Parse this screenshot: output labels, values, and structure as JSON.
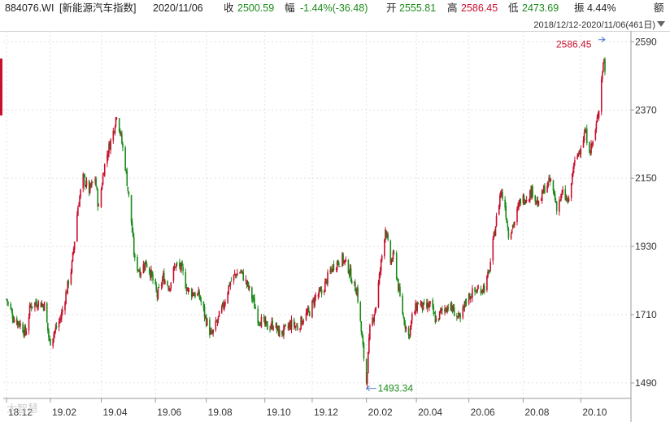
{
  "header": {
    "code": "884076.WI",
    "name": "[新能源汽车指数]",
    "date": "2020/11/06",
    "close_label": "收",
    "close_value": "2500.59",
    "change_label": "幅",
    "change_value": "-1.44%(-36.48)",
    "open_label": "开",
    "open_value": "2555.81",
    "high_label": "高",
    "high_value": "2586.45",
    "low_label": "低",
    "low_value": "2473.69",
    "amp_label": "振",
    "amp_value": "4.44%",
    "amount_label": "额"
  },
  "range": {
    "text": "2018/12/12-2020/11/06(461日)"
  },
  "watermark": "大智慧",
  "colors": {
    "up": "#c8102e",
    "down": "#1a8a1a",
    "grid": "#e2e2e2",
    "axis": "#9a9a9a",
    "annotation_line": "#4a78c8"
  },
  "chart_data": {
    "type": "candlestick",
    "title": "",
    "xlabel": "",
    "ylabel": "",
    "ylim": [
      1440,
      2625
    ],
    "x_range": [
      "2018-12-12",
      "2020-11-06"
    ],
    "y_ticks": [
      1490,
      1710,
      1930,
      2150,
      2370,
      2590
    ],
    "x_ticks": [
      {
        "label": "18.12",
        "date": "2018-12-12"
      },
      {
        "label": "19.02",
        "date": "2019-02-01"
      },
      {
        "label": "19.04",
        "date": "2019-04-01"
      },
      {
        "label": "19.06",
        "date": "2019-06-03"
      },
      {
        "label": "19.08",
        "date": "2019-08-01"
      },
      {
        "label": "19.10",
        "date": "2019-10-08"
      },
      {
        "label": "19.12",
        "date": "2019-12-02"
      },
      {
        "label": "20.02",
        "date": "2020-02-03"
      },
      {
        "label": "20.04",
        "date": "2020-04-01"
      },
      {
        "label": "20.06",
        "date": "2020-06-01"
      },
      {
        "label": "20.08",
        "date": "2020-08-03"
      },
      {
        "label": "20.10",
        "date": "2020-10-09"
      }
    ],
    "path": [
      [
        "2018-12-12",
        1760
      ],
      [
        "2018-12-20",
        1700
      ],
      [
        "2018-12-28",
        1680
      ],
      [
        "2019-01-03",
        1650
      ],
      [
        "2019-01-09",
        1740
      ],
      [
        "2019-01-17",
        1750
      ],
      [
        "2019-01-25",
        1740
      ],
      [
        "2019-01-31",
        1620
      ],
      [
        "2019-02-13",
        1700
      ],
      [
        "2019-02-20",
        1790
      ],
      [
        "2019-02-26",
        1870
      ],
      [
        "2019-03-05",
        2060
      ],
      [
        "2019-03-11",
        2150
      ],
      [
        "2019-03-18",
        2110
      ],
      [
        "2019-03-25",
        2150
      ],
      [
        "2019-03-29",
        2050
      ],
      [
        "2019-04-04",
        2180
      ],
      [
        "2019-04-09",
        2240
      ],
      [
        "2019-04-15",
        2300
      ],
      [
        "2019-04-19",
        2360
      ],
      [
        "2019-04-23",
        2300
      ],
      [
        "2019-04-29",
        2190
      ],
      [
        "2019-05-06",
        2010
      ],
      [
        "2019-05-10",
        1880
      ],
      [
        "2019-05-16",
        1850
      ],
      [
        "2019-05-23",
        1880
      ],
      [
        "2019-05-29",
        1840
      ],
      [
        "2019-06-05",
        1770
      ],
      [
        "2019-06-12",
        1830
      ],
      [
        "2019-06-19",
        1800
      ],
      [
        "2019-06-26",
        1870
      ],
      [
        "2019-07-03",
        1860
      ],
      [
        "2019-07-10",
        1790
      ],
      [
        "2019-07-17",
        1780
      ],
      [
        "2019-07-24",
        1770
      ],
      [
        "2019-07-31",
        1700
      ],
      [
        "2019-08-07",
        1640
      ],
      [
        "2019-08-14",
        1690
      ],
      [
        "2019-08-21",
        1740
      ],
      [
        "2019-08-28",
        1810
      ],
      [
        "2019-09-04",
        1840
      ],
      [
        "2019-09-10",
        1850
      ],
      [
        "2019-09-17",
        1810
      ],
      [
        "2019-09-24",
        1760
      ],
      [
        "2019-09-30",
        1700
      ],
      [
        "2019-10-11",
        1670
      ],
      [
        "2019-10-18",
        1680
      ],
      [
        "2019-10-25",
        1650
      ],
      [
        "2019-11-01",
        1660
      ],
      [
        "2019-11-08",
        1680
      ],
      [
        "2019-11-15",
        1670
      ],
      [
        "2019-11-22",
        1700
      ],
      [
        "2019-11-29",
        1720
      ],
      [
        "2019-12-06",
        1770
      ],
      [
        "2019-12-13",
        1780
      ],
      [
        "2019-12-20",
        1830
      ],
      [
        "2019-12-27",
        1870
      ],
      [
        "2020-01-06",
        1890
      ],
      [
        "2020-01-13",
        1860
      ],
      [
        "2020-01-20",
        1800
      ],
      [
        "2020-01-23",
        1790
      ],
      [
        "2020-02-03",
        1493.34
      ],
      [
        "2020-02-07",
        1660
      ],
      [
        "2020-02-14",
        1740
      ],
      [
        "2020-02-21",
        1900
      ],
      [
        "2020-02-25",
        1990
      ],
      [
        "2020-03-02",
        1880
      ],
      [
        "2020-03-06",
        1900
      ],
      [
        "2020-03-12",
        1780
      ],
      [
        "2020-03-17",
        1700
      ],
      [
        "2020-03-23",
        1640
      ],
      [
        "2020-03-27",
        1700
      ],
      [
        "2020-04-03",
        1750
      ],
      [
        "2020-04-10",
        1730
      ],
      [
        "2020-04-17",
        1740
      ],
      [
        "2020-04-24",
        1690
      ],
      [
        "2020-04-30",
        1720
      ],
      [
        "2020-05-08",
        1740
      ],
      [
        "2020-05-15",
        1720
      ],
      [
        "2020-05-22",
        1690
      ],
      [
        "2020-05-29",
        1760
      ],
      [
        "2020-06-05",
        1780
      ],
      [
        "2020-06-12",
        1790
      ],
      [
        "2020-06-19",
        1800
      ],
      [
        "2020-06-24",
        1840
      ],
      [
        "2020-07-02",
        2000
      ],
      [
        "2020-07-08",
        2110
      ],
      [
        "2020-07-13",
        2060
      ],
      [
        "2020-07-17",
        1970
      ],
      [
        "2020-07-24",
        2010
      ],
      [
        "2020-07-31",
        2080
      ],
      [
        "2020-08-07",
        2090
      ],
      [
        "2020-08-14",
        2110
      ],
      [
        "2020-08-21",
        2060
      ],
      [
        "2020-08-28",
        2120
      ],
      [
        "2020-09-04",
        2140
      ],
      [
        "2020-09-11",
        2060
      ],
      [
        "2020-09-18",
        2100
      ],
      [
        "2020-09-25",
        2070
      ],
      [
        "2020-09-30",
        2180
      ],
      [
        "2020-10-14",
        2300
      ],
      [
        "2020-10-20",
        2240
      ],
      [
        "2020-10-26",
        2300
      ],
      [
        "2020-10-30",
        2380
      ],
      [
        "2020-11-03",
        2500
      ],
      [
        "2020-11-05",
        2537
      ],
      [
        "2020-11-06",
        2500.59
      ]
    ],
    "annotations": [
      {
        "label": "2586.45",
        "date": "2020-11-06",
        "value": 2586.45,
        "kind": "high"
      },
      {
        "label": "1493.34",
        "date": "2020-02-03",
        "value": 1493.34,
        "kind": "low"
      }
    ]
  }
}
